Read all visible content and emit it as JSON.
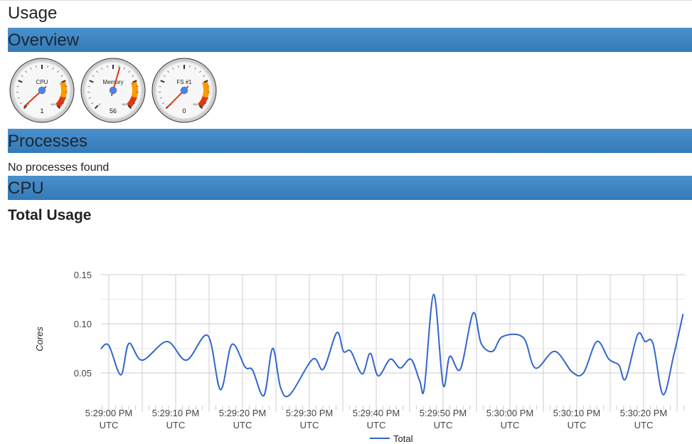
{
  "page_title": "Usage",
  "sections": {
    "overview": "Overview",
    "processes": "Processes",
    "cpu": "CPU"
  },
  "gauges": [
    {
      "label": "CPU",
      "value": 1,
      "min_label": "0",
      "max_label": "100"
    },
    {
      "label": "Memory",
      "value": 56,
      "min_label": "0",
      "max_label": "100"
    },
    {
      "label": "FS #1",
      "value": 0,
      "min_label": "0",
      "max_label": "100"
    }
  ],
  "processes_message": "No processes found",
  "cpu_subtitle": "Total Usage",
  "colors": {
    "header": "#337ab7",
    "line": "#3366cc",
    "gauge_orange": "#ff9900",
    "gauge_red": "#dc3912"
  },
  "chart_data": {
    "type": "line",
    "ylabel": "Cores",
    "ylim": [
      0.019,
      0.15
    ],
    "yticks": [
      "0.15",
      "0.10",
      "0.05"
    ],
    "xticks": [
      "5:29:00 PM UTC",
      "5:29:10 PM UTC",
      "5:29:20 PM UTC",
      "5:29:30 PM UTC",
      "5:29:40 PM UTC",
      "5:29:50 PM UTC",
      "5:30:00 PM UTC",
      "5:30:10 PM UTC",
      "5:30:20 PM UTC"
    ],
    "legend": "bottom",
    "series": [
      {
        "name": "Total",
        "points": [
          [
            "5:28:58.8 PM",
            0.0746
          ],
          [
            "5:29:00 PM",
            0.078
          ],
          [
            "5:29:01.8 PM",
            0.048
          ],
          [
            "5:29:03 PM",
            0.08
          ],
          [
            "5:29:05 PM",
            0.063
          ],
          [
            "5:29:08.7 PM",
            0.082
          ],
          [
            "5:29:11.6 PM",
            0.063
          ],
          [
            "5:29:14.8 PM",
            0.088
          ],
          [
            "5:29:16.7 PM",
            0.033
          ],
          [
            "5:29:18.4 PM",
            0.079
          ],
          [
            "5:29:20.4 PM",
            0.056
          ],
          [
            "5:29:21.5 PM",
            0.053
          ],
          [
            "5:29:23.2 PM",
            0.027
          ],
          [
            "5:29:24.5 PM",
            0.075
          ],
          [
            "5:29:25.7 PM",
            0.035
          ],
          [
            "5:29:27.1 PM",
            0.028
          ],
          [
            "5:29:30.5 PM",
            0.064
          ],
          [
            "5:29:32.1 PM",
            0.054
          ],
          [
            "5:29:34.1 PM",
            0.091
          ],
          [
            "5:29:35.1 PM",
            0.072
          ],
          [
            "5:29:36.2 PM",
            0.072
          ],
          [
            "5:29:37.9 PM",
            0.049
          ],
          [
            "5:29:39.1 PM",
            0.07
          ],
          [
            "5:29:40.3 PM",
            0.047
          ],
          [
            "5:29:42.1 PM",
            0.064
          ],
          [
            "5:29:43.6 PM",
            0.055
          ],
          [
            "5:29:45.2 PM",
            0.064
          ],
          [
            "5:29:46.5 PM",
            0.042
          ],
          [
            "5:29:47.2 PM",
            0.035
          ],
          [
            "5:29:48.6 PM",
            0.13
          ],
          [
            "5:29:50 PM",
            0.038
          ],
          [
            "5:29:51 PM",
            0.067
          ],
          [
            "5:29:52.6 PM",
            0.054
          ],
          [
            "5:29:54.5 PM",
            0.111
          ],
          [
            "5:29:55.7 PM",
            0.08
          ],
          [
            "5:29:57.4 PM",
            0.072
          ],
          [
            "5:29:58.9 PM",
            0.087
          ],
          [
            "5:30:02 PM",
            0.086
          ],
          [
            "5:30:03.8 PM",
            0.055
          ],
          [
            "5:30:06.7 PM",
            0.072
          ],
          [
            "5:30:09.3 PM",
            0.051
          ],
          [
            "5:30:11 PM",
            0.05
          ],
          [
            "5:30:13 PM",
            0.082
          ],
          [
            "5:30:14.8 PM",
            0.064
          ],
          [
            "5:30:16.3 PM",
            0.058
          ],
          [
            "5:30:17.3 PM",
            0.044
          ],
          [
            "5:30:19.1 PM",
            0.089
          ],
          [
            "5:30:20.2 PM",
            0.082
          ],
          [
            "5:30:21.4 PM",
            0.08
          ],
          [
            "5:30:22.9 PM",
            0.028
          ],
          [
            "5:30:24.5 PM",
            0.068
          ],
          [
            "5:30:25.9 PM",
            0.11
          ]
        ]
      }
    ]
  }
}
